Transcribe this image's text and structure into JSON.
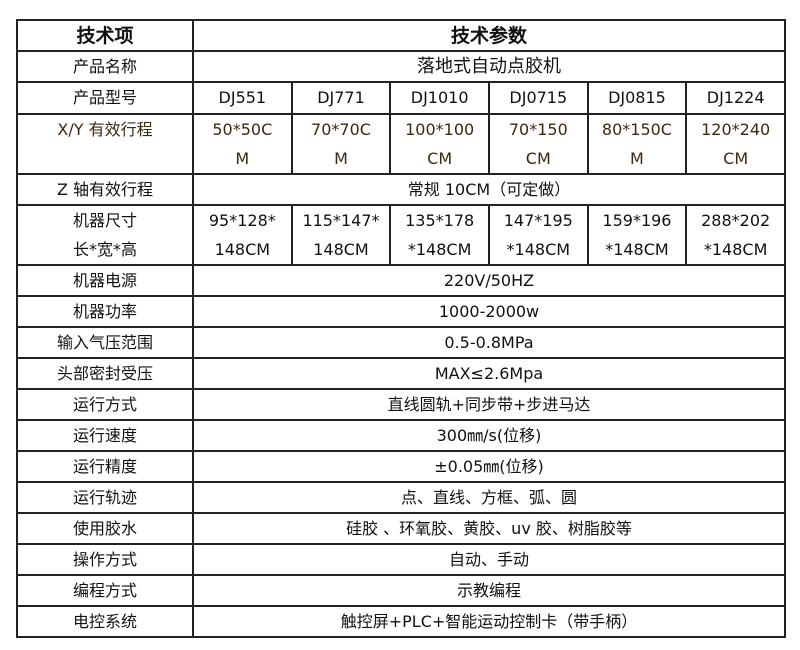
{
  "header": {
    "item": "技术项",
    "params": "技术参数"
  },
  "product_name": {
    "label": "产品名称",
    "value": "落地式自动点胶机"
  },
  "models": {
    "label": "产品型号",
    "values": [
      "DJ551",
      "DJ771",
      "DJ1010",
      "DJ0715",
      "DJ0815",
      "DJ1224"
    ]
  },
  "xy_travel": {
    "label": "X/Y 有效行程",
    "values": [
      [
        "50*50C",
        "M"
      ],
      [
        "70*70C",
        "M"
      ],
      [
        "100*100",
        "CM"
      ],
      [
        "70*150",
        "CM"
      ],
      [
        "80*150C",
        "M"
      ],
      [
        "120*240",
        "CM"
      ]
    ]
  },
  "z_travel": {
    "label": "Z 轴有效行程",
    "value": "常规 10CM（可定做）"
  },
  "size": {
    "label": [
      "机器尺寸",
      "长*宽*高"
    ],
    "values": [
      [
        "95*128*",
        "148CM"
      ],
      [
        "115*147*",
        "148CM"
      ],
      [
        "135*178",
        "*148CM"
      ],
      [
        "147*195",
        "*148CM"
      ],
      [
        "159*196",
        "*148CM"
      ],
      [
        "288*202",
        "*148CM"
      ]
    ]
  },
  "rows": [
    {
      "label": "机器电源",
      "value": "220V/50HZ"
    },
    {
      "label": "机器功率",
      "value": "1000-2000w"
    },
    {
      "label": "输入气压范围",
      "value": "0.5-0.8MPa"
    },
    {
      "label": "头部密封受压",
      "value": "MAX≤2.6Mpa"
    },
    {
      "label": "运行方式",
      "value": "直线圆轨+同步带+步进马达"
    },
    {
      "label": "运行速度",
      "value": "300㎜/s(位移)"
    },
    {
      "label": "运行精度",
      "value": "±0.05㎜(位移)"
    },
    {
      "label": "运行轨迹",
      "value": "点、直线、方框、弧、圆"
    },
    {
      "label": "使用胶水",
      "value": "硅胶 、环氧胶、黄胶、uv 胶、树脂胶等"
    },
    {
      "label": "操作方式",
      "value": "自动、手动"
    },
    {
      "label": "编程方式",
      "value": "示教编程"
    },
    {
      "label": "电控系统",
      "value": "触控屏+PLC+智能运动控制卡（带手柄）"
    }
  ]
}
